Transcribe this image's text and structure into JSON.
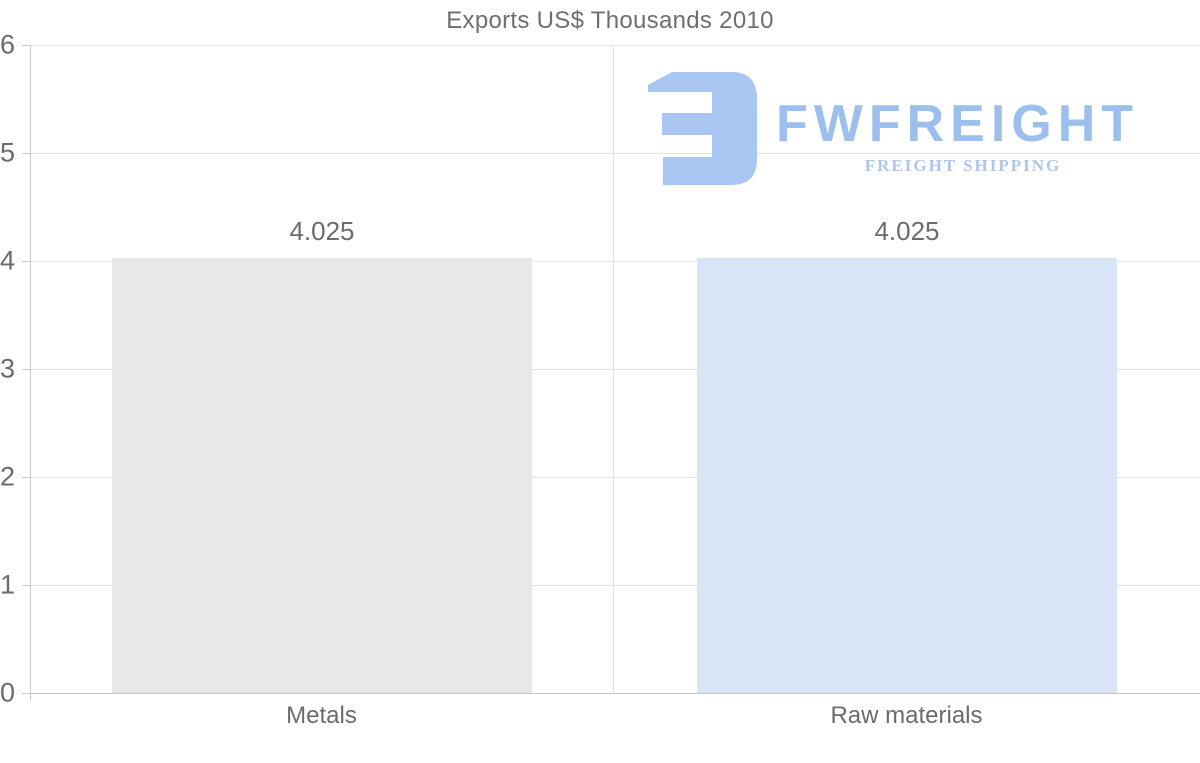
{
  "title": "Exports US$ Thousands 2010",
  "watermark": {
    "brand": "FWFREIGHT",
    "tagline": "FREIGHT SHIPPING",
    "glyph_color": "#a9c6f3",
    "brand_color": "#9cbfee",
    "tagline_color": "#aec5ec"
  },
  "chart_data": {
    "type": "bar",
    "title": "Exports US$ Thousands 2010",
    "categories": [
      "Metals",
      "Raw materials"
    ],
    "values": [
      4.025,
      4.025
    ],
    "value_labels": [
      "4.025",
      "4.025"
    ],
    "bar_colors": [
      "#e7e7e7",
      "#d7e5f7"
    ],
    "xlabel": "",
    "ylabel": "",
    "ylim": [
      0,
      6
    ],
    "yticks": [
      "6",
      "5",
      "4",
      "3",
      "2",
      "1",
      "0"
    ],
    "grid": true,
    "legend": "none",
    "text_color": "#6b6b6b",
    "gridline_color": "#e2e2e2"
  }
}
